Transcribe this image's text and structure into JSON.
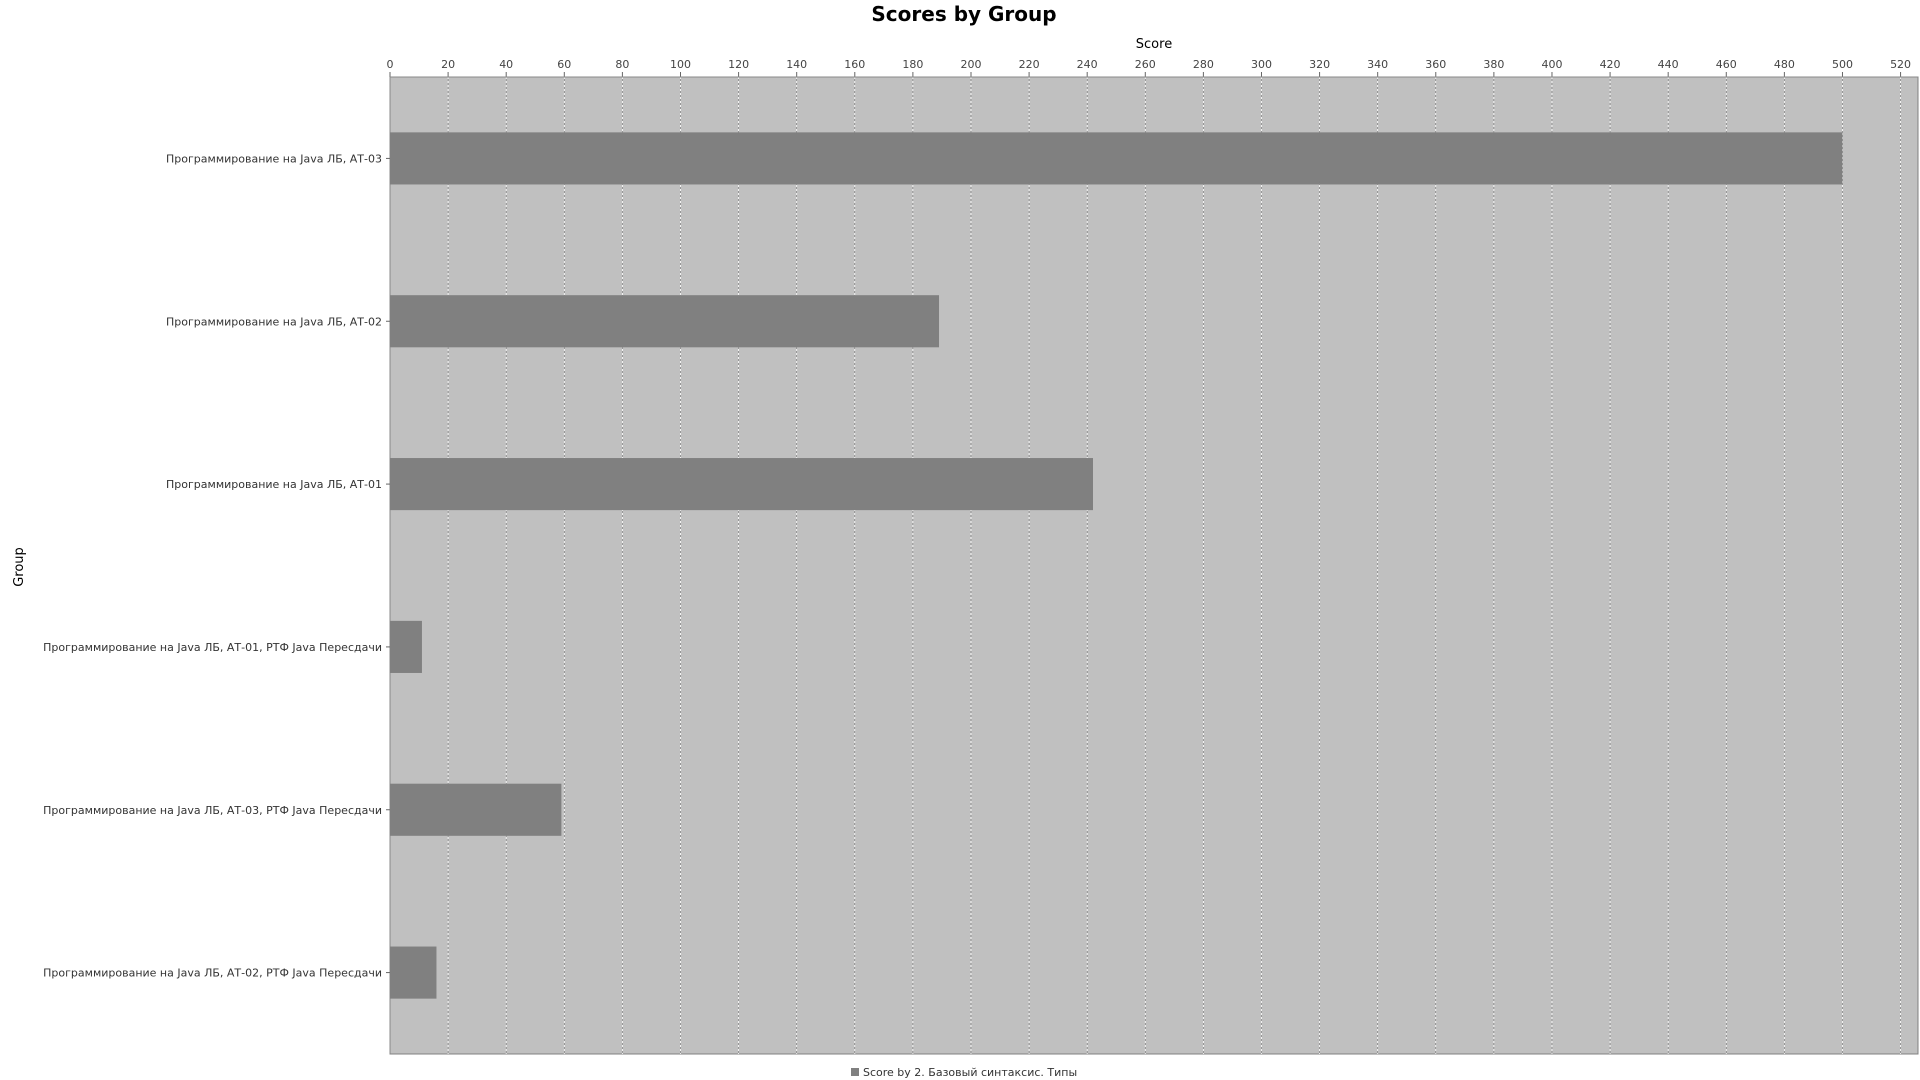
{
  "chart_data": {
    "type": "bar",
    "orientation": "horizontal",
    "title": "Scores by Group",
    "xlabel": "Score",
    "ylabel": "Group",
    "xlim": [
      0,
      526
    ],
    "x_ticks": [
      0,
      20,
      40,
      60,
      80,
      100,
      120,
      140,
      160,
      180,
      200,
      220,
      240,
      260,
      280,
      300,
      320,
      340,
      360,
      380,
      400,
      420,
      440,
      460,
      480,
      500,
      520
    ],
    "grid": true,
    "legend_position": "bottom",
    "categories": [
      "Программирование на Java ЛБ, АТ-03",
      "Программирование на Java ЛБ, АТ-02",
      "Программирование на Java ЛБ, АТ-01",
      "Программирование на Java ЛБ, АТ-01, РТФ Java Пересдачи",
      "Программирование на Java ЛБ, АТ-03, РТФ Java Пересдачи",
      "Программирование на Java ЛБ, АТ-02, РТФ Java Пересдачи"
    ],
    "series": [
      {
        "name": "Score by 2. Базовый синтаксис. Типы",
        "color": "#808080",
        "values": [
          500,
          189,
          242,
          11,
          59,
          16
        ]
      }
    ],
    "plot_background": "#c0c0c0"
  }
}
